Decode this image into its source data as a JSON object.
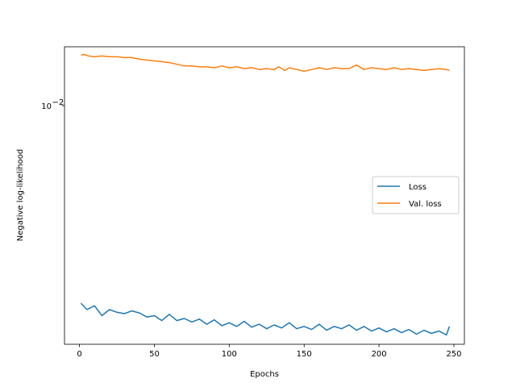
{
  "chart_data": {
    "type": "line",
    "xlabel": "Epochs",
    "ylabel": "Negative log-likelihood",
    "xlim": [
      -10,
      257
    ],
    "ylim": [
      0.00138,
      0.0163
    ],
    "yscale": "log",
    "x_ticks": [
      0,
      50,
      100,
      150,
      200,
      250
    ],
    "y_ticks": [
      {
        "value": 0.01,
        "base": "10",
        "exponent": "−2"
      }
    ],
    "grid": false,
    "legend": {
      "position": "center-right"
    },
    "series": [
      {
        "name": "Loss",
        "color": "#1f77b4",
        "x": [
          1,
          5,
          10,
          15,
          20,
          25,
          30,
          35,
          40,
          45,
          50,
          55,
          60,
          65,
          70,
          75,
          80,
          85,
          90,
          95,
          100,
          105,
          110,
          115,
          120,
          125,
          130,
          135,
          140,
          145,
          150,
          155,
          160,
          165,
          170,
          175,
          180,
          185,
          190,
          195,
          200,
          205,
          210,
          215,
          220,
          225,
          230,
          235,
          240,
          245,
          247
        ],
        "y": [
          0.00194,
          0.00184,
          0.0019,
          0.00175,
          0.00184,
          0.0018,
          0.00178,
          0.00182,
          0.00179,
          0.00173,
          0.00175,
          0.00168,
          0.00177,
          0.00168,
          0.00171,
          0.00166,
          0.0017,
          0.00163,
          0.00169,
          0.00161,
          0.00165,
          0.0016,
          0.00167,
          0.00159,
          0.00163,
          0.00157,
          0.00162,
          0.00158,
          0.00165,
          0.00157,
          0.0016,
          0.00156,
          0.00163,
          0.00155,
          0.0016,
          0.00157,
          0.00162,
          0.00155,
          0.0016,
          0.00154,
          0.00158,
          0.00153,
          0.00157,
          0.00152,
          0.00156,
          0.0015,
          0.00155,
          0.00151,
          0.00154,
          0.00149,
          0.0016
        ]
      },
      {
        "name": "Val. loss",
        "color": "#ff7f0e",
        "x": [
          1,
          3,
          6,
          10,
          15,
          20,
          25,
          30,
          35,
          40,
          45,
          50,
          55,
          60,
          65,
          70,
          75,
          80,
          85,
          90,
          95,
          100,
          105,
          110,
          115,
          120,
          125,
          130,
          133,
          137,
          140,
          145,
          150,
          155,
          160,
          165,
          170,
          175,
          180,
          185,
          190,
          195,
          200,
          205,
          210,
          215,
          220,
          225,
          230,
          235,
          240,
          245,
          247
        ],
        "y": [
          0.0152,
          0.0153,
          0.0151,
          0.015,
          0.0151,
          0.015,
          0.015,
          0.0149,
          0.0149,
          0.0147,
          0.0146,
          0.0145,
          0.0144,
          0.0143,
          0.0141,
          0.0139,
          0.0139,
          0.0138,
          0.0138,
          0.0137,
          0.0139,
          0.0137,
          0.0138,
          0.0136,
          0.0137,
          0.0135,
          0.0136,
          0.0135,
          0.0138,
          0.0134,
          0.0137,
          0.0135,
          0.0133,
          0.0135,
          0.0137,
          0.0135,
          0.0137,
          0.0136,
          0.0136,
          0.014,
          0.0135,
          0.0137,
          0.0136,
          0.0135,
          0.0137,
          0.0135,
          0.0136,
          0.0135,
          0.0134,
          0.0135,
          0.0136,
          0.0135,
          0.0134
        ]
      }
    ]
  }
}
